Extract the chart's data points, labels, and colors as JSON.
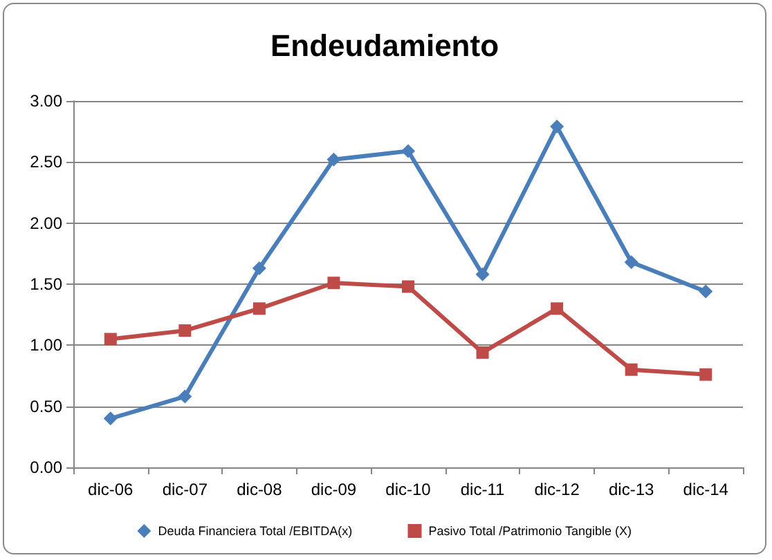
{
  "chart_data": {
    "type": "line",
    "title": "Endeudamiento",
    "categories": [
      "dic-06",
      "dic-07",
      "dic-08",
      "dic-09",
      "dic-10",
      "dic-11",
      "dic-12",
      "dic-13",
      "dic-14"
    ],
    "series": [
      {
        "name": "Deuda Financiera Total /EBITDA(x)",
        "color": "#4a7ebb",
        "marker": "diamond",
        "values": [
          0.4,
          0.58,
          1.63,
          2.52,
          2.59,
          1.58,
          2.79,
          1.68,
          1.44
        ]
      },
      {
        "name": "Pasivo Total /Patrimonio Tangible (X)",
        "color": "#be4b48",
        "marker": "square",
        "values": [
          1.05,
          1.12,
          1.3,
          1.51,
          1.48,
          0.94,
          1.3,
          0.8,
          0.76
        ]
      }
    ],
    "ylim": [
      0,
      3
    ],
    "yticks": [
      {
        "value": 0,
        "label": "0.00"
      },
      {
        "value": 0.5,
        "label": "0.50"
      },
      {
        "value": 1,
        "label": "1.00"
      },
      {
        "value": 1.5,
        "label": "1.50"
      },
      {
        "value": 2,
        "label": "2.00"
      },
      {
        "value": 2.5,
        "label": "2.50"
      },
      {
        "value": 3,
        "label": "3.00"
      }
    ],
    "grid": "y",
    "legend": "bottom"
  }
}
